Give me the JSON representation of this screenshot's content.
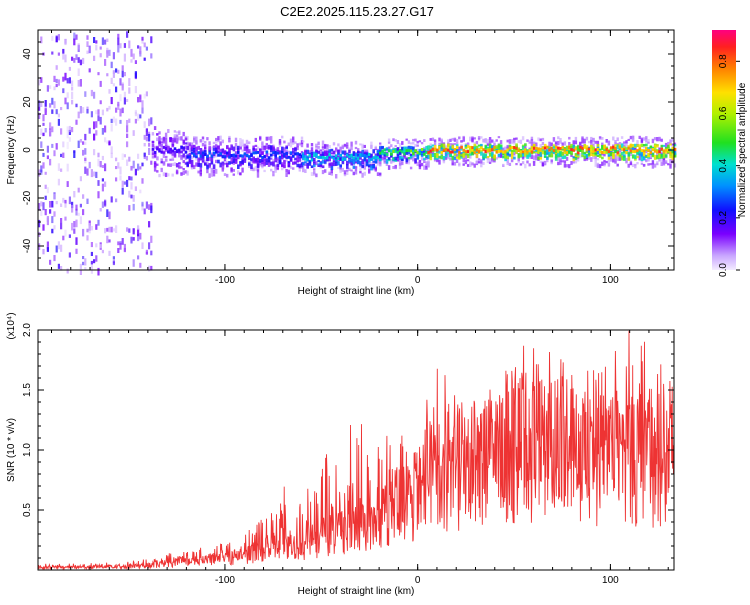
{
  "page_title": "C2E2.2025.115.23.27.G17",
  "chart_data": [
    {
      "id": "spectrogram",
      "type": "heatmap",
      "title": "C2E2.2025.115.23.27.G17",
      "xlabel": "Height of straight line (km)",
      "ylabel": "Frequency (Hz)",
      "xlim": [
        -197,
        133
      ],
      "ylim": [
        -50,
        50
      ],
      "xticks": [
        -100,
        0,
        100
      ],
      "yticks": [
        -40,
        -20,
        0,
        20,
        40
      ],
      "colorbar": {
        "label": "Normalized spectral amplitude",
        "range": [
          0,
          0.92
        ],
        "ticks": [
          0.0,
          0.2,
          0.4,
          0.6,
          0.8
        ]
      },
      "segments": [
        {
          "x_start": -197,
          "x_end": -138,
          "center_hz": 0,
          "spread_hz": 50,
          "amplitude": 0.08,
          "description": "broadband noise"
        },
        {
          "x_start": -138,
          "x_end": -120,
          "center_hz": 0,
          "spread_hz": 8,
          "amplitude": 0.22
        },
        {
          "x_start": -120,
          "x_end": -60,
          "center_hz": -2,
          "spread_hz": 6,
          "amplitude": 0.3
        },
        {
          "x_start": -60,
          "x_end": -20,
          "center_hz": -3,
          "spread_hz": 5,
          "amplitude": 0.42
        },
        {
          "x_start": -20,
          "x_end": 5,
          "center_hz": -1,
          "spread_hz": 4,
          "amplitude": 0.6
        },
        {
          "x_start": 5,
          "x_end": 133,
          "center_hz": 0,
          "spread_hz": 4,
          "amplitude": 0.9
        }
      ]
    },
    {
      "id": "snr",
      "type": "line",
      "xlabel": "Height of straight line (km)",
      "ylabel": "SNR (10 * v/v)",
      "yscale_label": "(x10⁴)",
      "xlim": [
        -197,
        133
      ],
      "ylim": [
        0,
        2.0
      ],
      "xticks": [
        -100,
        0,
        100
      ],
      "yticks": [
        0.5,
        1.0,
        1.5,
        2.0
      ],
      "yticklabels": [
        "0.5",
        "1.0",
        "1.5",
        "2.0"
      ],
      "series": [
        {
          "name": "SNR",
          "color": "#ee3333",
          "envelope": {
            "x": [
              -197,
              -150,
              -130,
              -110,
              -90,
              -80,
              -70,
              -60,
              -50,
              -40,
              -30,
              -20,
              -10,
              0,
              10,
              20,
              30,
              40,
              50,
              60,
              70,
              80,
              90,
              100,
              110,
              120,
              133
            ],
            "mean": [
              0.02,
              0.03,
              0.06,
              0.1,
              0.13,
              0.18,
              0.25,
              0.22,
              0.3,
              0.35,
              0.4,
              0.5,
              0.62,
              0.7,
              0.8,
              0.88,
              0.98,
              1.05,
              1.1,
              1.12,
              1.1,
              1.05,
              1.0,
              1.05,
              1.0,
              1.02,
              0.95
            ],
            "peak": [
              0.05,
              0.07,
              0.14,
              0.2,
              0.3,
              0.45,
              0.75,
              0.62,
              0.95,
              1.05,
              1.4,
              1.18,
              1.15,
              1.25,
              1.8,
              1.45,
              1.55,
              1.5,
              1.75,
              1.6,
              1.8,
              1.75,
              1.7,
              1.9,
              2.0,
              1.9,
              1.88
            ]
          }
        }
      ]
    }
  ],
  "colors": {
    "line": "#ee3333",
    "axis": "#000000",
    "dashed_zero": "#555555"
  }
}
